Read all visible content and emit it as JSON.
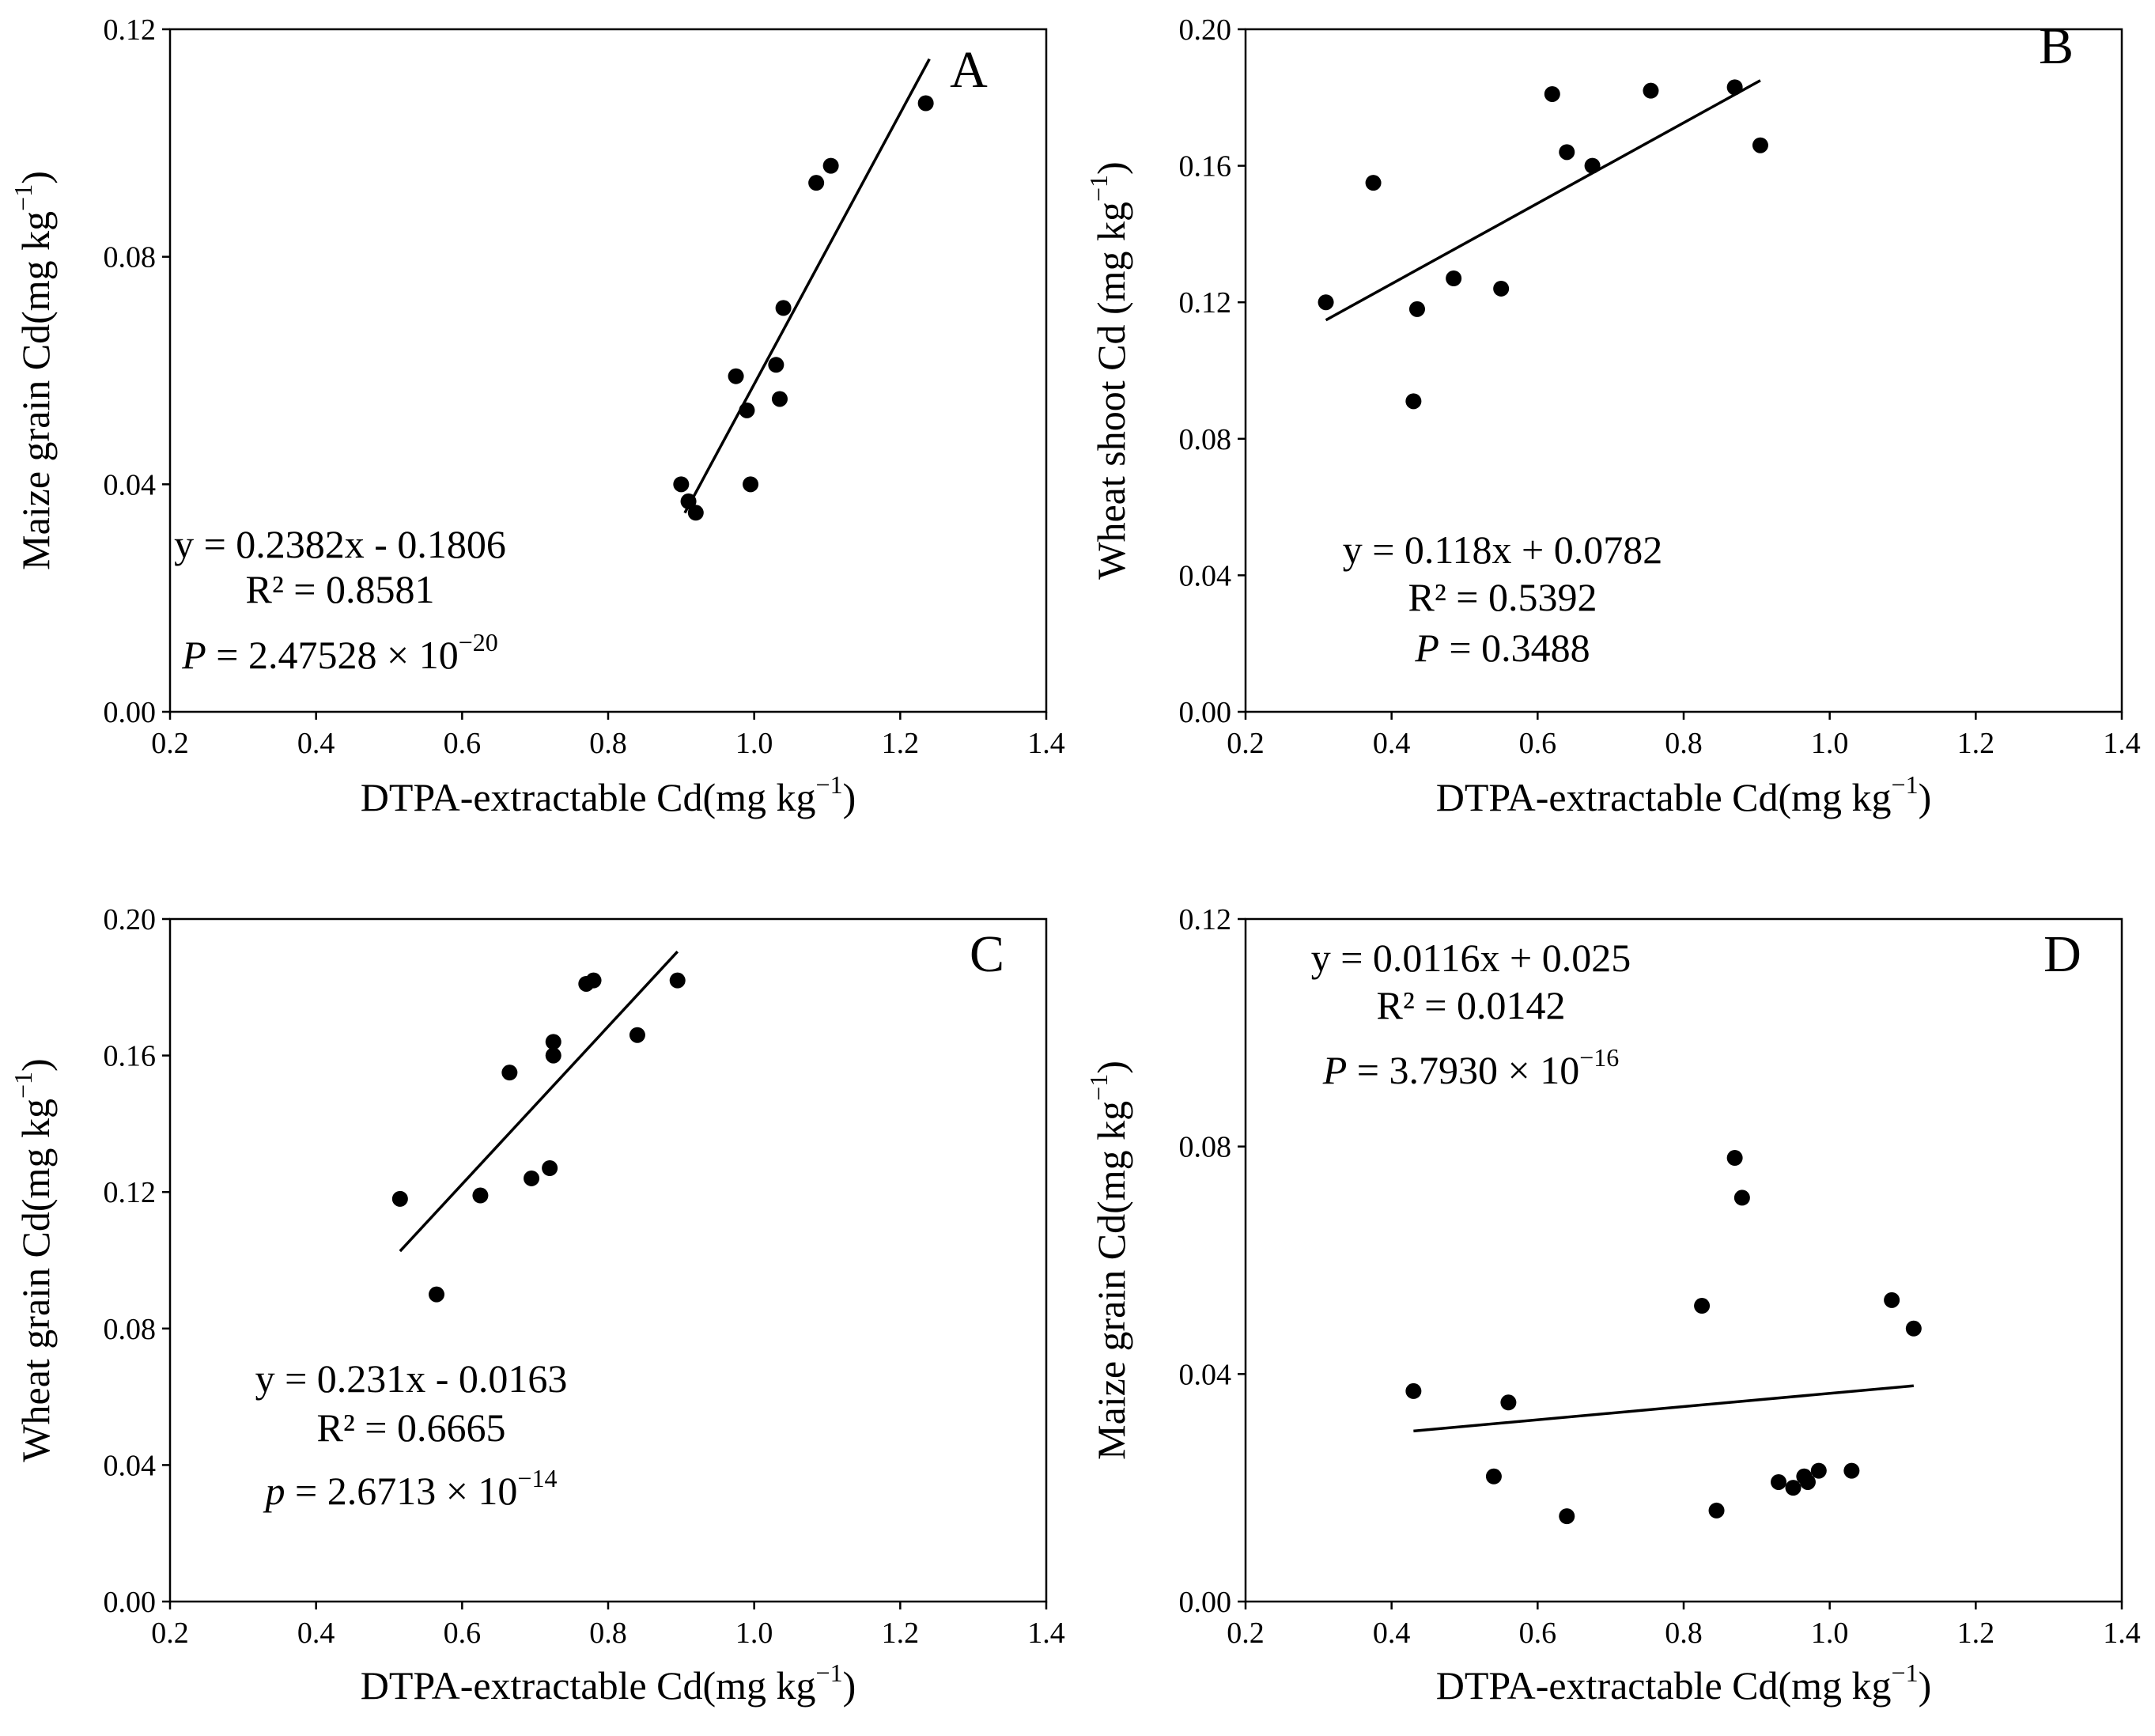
{
  "chart_data": [
    {
      "type": "scatter",
      "letter": "A",
      "xlabel": "DTPA-extractable  Cd(mg kg",
      "ylabel": "Maize grain Cd(mg kg",
      "unit_sup": "−1",
      "unit_close": ")",
      "xlim": [
        0.2,
        1.4
      ],
      "ylim": [
        0,
        0.12
      ],
      "xticks": [
        "0.2",
        "0.4",
        "0.6",
        "0.8",
        "1.0",
        "1.2",
        "1.4"
      ],
      "yticks": [
        "0.00",
        "0.04",
        "0.08",
        "0.12"
      ],
      "points": [
        [
          0.9,
          0.04
        ],
        [
          0.91,
          0.037
        ],
        [
          0.92,
          0.035
        ],
        [
          0.975,
          0.059
        ],
        [
          0.99,
          0.053
        ],
        [
          0.995,
          0.04
        ],
        [
          1.03,
          0.061
        ],
        [
          1.035,
          0.055
        ],
        [
          1.04,
          0.071
        ],
        [
          1.085,
          0.093
        ],
        [
          1.105,
          0.096
        ],
        [
          1.235,
          0.107
        ]
      ],
      "fit": {
        "slope": 0.2382,
        "intercept": -0.1806,
        "x_range": [
          0.905,
          1.24
        ]
      },
      "equation": "y = 0.2382x - 0.1806",
      "r2_label": "R² = ",
      "r2_value": "0.8581",
      "p_symbol": "P",
      "p_text": " = 2.47528 × 10",
      "p_exp": "−20"
    },
    {
      "type": "scatter",
      "letter": "B",
      "xlabel": "DTPA-extractable  Cd(mg kg",
      "ylabel": "Wheat shoot Cd (mg kg",
      "unit_sup": "−1",
      "unit_close": ")",
      "xlim": [
        0.2,
        1.4
      ],
      "ylim": [
        0,
        0.2
      ],
      "xticks": [
        "0.2",
        "0.4",
        "0.6",
        "0.8",
        "1.0",
        "1.2",
        "1.4"
      ],
      "yticks": [
        "0.00",
        "0.04",
        "0.08",
        "0.12",
        "0.16",
        "0.20"
      ],
      "points": [
        [
          0.31,
          0.12
        ],
        [
          0.375,
          0.155
        ],
        [
          0.43,
          0.091
        ],
        [
          0.435,
          0.118
        ],
        [
          0.485,
          0.127
        ],
        [
          0.55,
          0.124
        ],
        [
          0.62,
          0.181
        ],
        [
          0.64,
          0.164
        ],
        [
          0.675,
          0.16
        ],
        [
          0.755,
          0.182
        ],
        [
          0.87,
          0.183
        ],
        [
          0.905,
          0.166
        ]
      ],
      "fit": {
        "slope": 0.118,
        "intercept": 0.0782,
        "x_range": [
          0.31,
          0.905
        ]
      },
      "equation": "y = 0.118x + 0.0782",
      "r2_label": "R² = ",
      "r2_value": "0.5392",
      "p_symbol": "P",
      "p_text": " = 0.3488",
      "p_exp": ""
    },
    {
      "type": "scatter",
      "letter": "C",
      "xlabel": "DTPA-extractable  Cd(mg kg",
      "ylabel": "Wheat  grain Cd(mg kg",
      "unit_sup": "−1",
      "unit_close": ")",
      "xlim": [
        0.2,
        1.4
      ],
      "ylim": [
        0,
        0.2
      ],
      "xticks": [
        "0.2",
        "0.4",
        "0.6",
        "0.8",
        "1.0",
        "1.2",
        "1.4"
      ],
      "yticks": [
        "0.00",
        "0.04",
        "0.08",
        "0.12",
        "0.16",
        "0.20"
      ],
      "points": [
        [
          0.515,
          0.118
        ],
        [
          0.565,
          0.09
        ],
        [
          0.625,
          0.119
        ],
        [
          0.665,
          0.155
        ],
        [
          0.695,
          0.124
        ],
        [
          0.72,
          0.127
        ],
        [
          0.725,
          0.16
        ],
        [
          0.725,
          0.164
        ],
        [
          0.77,
          0.181
        ],
        [
          0.78,
          0.182
        ],
        [
          0.84,
          0.166
        ],
        [
          0.895,
          0.182
        ]
      ],
      "fit": {
        "slope": 0.231,
        "intercept": -0.0163,
        "x_range": [
          0.515,
          0.895
        ]
      },
      "equation": "y = 0.231x - 0.0163",
      "r2_label": "R² = ",
      "r2_value": "0.6665",
      "p_symbol": "p",
      "p_text": " = 2.6713 × 10",
      "p_exp": "−14"
    },
    {
      "type": "scatter",
      "letter": "D",
      "xlabel": "DTPA-extractable  Cd(mg kg",
      "ylabel": "Maize grain Cd(mg kg",
      "unit_sup": "−1",
      "unit_close": ")",
      "xlim": [
        0.2,
        1.4
      ],
      "ylim": [
        0,
        0.12
      ],
      "xticks": [
        "0.2",
        "0.4",
        "0.6",
        "0.8",
        "1.0",
        "1.2",
        "1.4"
      ],
      "yticks": [
        "0.00",
        "0.04",
        "0.08",
        "0.12"
      ],
      "points": [
        [
          0.43,
          0.037
        ],
        [
          0.54,
          0.022
        ],
        [
          0.56,
          0.035
        ],
        [
          0.64,
          0.015
        ],
        [
          0.825,
          0.052
        ],
        [
          0.845,
          0.016
        ],
        [
          0.87,
          0.078
        ],
        [
          0.88,
          0.071
        ],
        [
          0.93,
          0.021
        ],
        [
          0.95,
          0.02
        ],
        [
          0.965,
          0.022
        ],
        [
          0.97,
          0.021
        ],
        [
          0.985,
          0.023
        ],
        [
          1.03,
          0.023
        ],
        [
          1.085,
          0.053
        ],
        [
          1.115,
          0.048
        ]
      ],
      "fit": {
        "slope": 0.0116,
        "intercept": 0.025,
        "x_range": [
          0.43,
          1.115
        ]
      },
      "equation": "y = 0.0116x + 0.025",
      "r2_label": "R² = ",
      "r2_value": "0.0142",
      "p_symbol": "P",
      "p_text": " = 3.7930 × 10",
      "p_exp": "−16"
    }
  ]
}
